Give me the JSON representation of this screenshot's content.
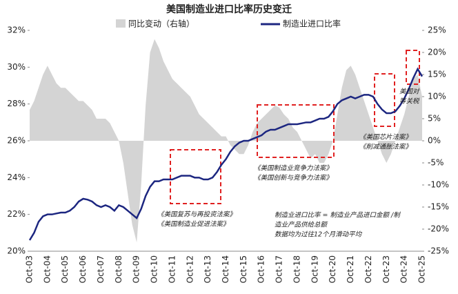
{
  "chart_data": {
    "type": "line",
    "title": "美国制造业进口比率历史变迁",
    "categories": [
      "Oct-03",
      null,
      null,
      null,
      "Oct-04",
      null,
      null,
      null,
      "Oct-05",
      null,
      null,
      null,
      "Oct-06",
      null,
      null,
      null,
      "Oct-07",
      null,
      null,
      null,
      "Oct-08",
      null,
      null,
      null,
      "Oct-09",
      null,
      null,
      null,
      "Oct-10",
      null,
      null,
      null,
      "Oct-11",
      null,
      null,
      null,
      "Oct-12",
      null,
      null,
      null,
      "Oct-13",
      null,
      null,
      null,
      "Oct-14",
      null,
      null,
      null,
      "Oct-15",
      null,
      null,
      null,
      "Oct-16",
      null,
      null,
      null,
      "Oct-17",
      null,
      null,
      null,
      "Oct-18",
      null,
      null,
      null,
      "Oct-19",
      null,
      null,
      null,
      "Oct-20",
      null,
      null,
      null,
      "Oct-21",
      null,
      null,
      null,
      "Oct-22",
      null,
      null,
      null,
      "Oct-23",
      null,
      null,
      null,
      "Oct-24",
      null,
      null,
      null,
      "Oct-25"
    ],
    "series": [
      {
        "name": "同比变动（右轴）",
        "color": "#d4d4d4",
        "axis": "y2",
        "kind": "area",
        "values": [
          7,
          9,
          12,
          15,
          17,
          15,
          13,
          12,
          12,
          11,
          10,
          9,
          9,
          8,
          7,
          5,
          5,
          5,
          4,
          2,
          0,
          -5,
          -12,
          -19,
          -23,
          -10,
          8,
          20,
          23,
          21,
          18,
          16,
          14,
          13,
          12,
          11,
          10,
          8,
          6,
          5,
          4,
          3,
          2,
          1,
          1,
          -1,
          -2,
          -3,
          -3,
          -1,
          2,
          4,
          5,
          6,
          7,
          8,
          7.5,
          6,
          5,
          3,
          2,
          0,
          -2,
          -4,
          -3,
          -5,
          -5,
          -3,
          0,
          6,
          12,
          16,
          17,
          15,
          12,
          9,
          6,
          3,
          0,
          -3,
          -5,
          -3,
          0,
          3,
          6,
          10,
          14,
          15,
          10
        ]
      },
      {
        "name": "制造业进口比率",
        "color": "#1c2680",
        "kind": "line",
        "values": [
          20.6,
          21.0,
          21.6,
          21.9,
          22.0,
          22.0,
          22.05,
          22.1,
          22.1,
          22.2,
          22.4,
          22.7,
          22.85,
          22.8,
          22.7,
          22.5,
          22.4,
          22.5,
          22.4,
          22.2,
          22.5,
          22.4,
          22.2,
          22.0,
          21.8,
          22.3,
          23.0,
          23.5,
          23.8,
          23.8,
          23.9,
          23.9,
          23.9,
          24.0,
          24.1,
          24.1,
          24.1,
          24.0,
          24.0,
          23.9,
          23.9,
          24.0,
          24.3,
          24.7,
          25.0,
          25.4,
          25.7,
          25.9,
          26.0,
          26.0,
          26.1,
          26.2,
          26.3,
          26.5,
          26.6,
          26.6,
          26.7,
          26.8,
          26.9,
          26.9,
          26.9,
          26.95,
          27.0,
          27.0,
          27.1,
          27.2,
          27.2,
          27.3,
          27.6,
          28.0,
          28.2,
          28.3,
          28.4,
          28.3,
          28.4,
          28.5,
          28.5,
          28.4,
          28.0,
          27.7,
          27.5,
          27.5,
          27.6,
          27.9,
          28.3,
          28.8,
          29.4,
          29.9,
          29.5
        ]
      }
    ],
    "ylim": [
      20,
      32
    ],
    "yticks": [
      {
        "value": 20,
        "label": "20%"
      },
      {
        "value": 22,
        "label": "22%"
      },
      {
        "value": 24,
        "label": "24%"
      },
      {
        "value": 26,
        "label": "26%"
      },
      {
        "value": 28,
        "label": "28%"
      },
      {
        "value": 30,
        "label": "30%"
      },
      {
        "value": 32,
        "label": "32%"
      }
    ],
    "y2lim": [
      -25,
      25
    ],
    "y2ticks": [
      {
        "value": -25,
        "label": "-25%"
      },
      {
        "value": -20,
        "label": "-20%"
      },
      {
        "value": -15,
        "label": "-15%"
      },
      {
        "value": -10,
        "label": "-10%"
      },
      {
        "value": -5,
        "label": "-5%"
      },
      {
        "value": 0,
        "label": "0%"
      },
      {
        "value": 5,
        "label": "5%"
      },
      {
        "value": 10,
        "label": "10%"
      },
      {
        "value": 15,
        "label": "15%"
      },
      {
        "value": 20,
        "label": "20%"
      },
      {
        "value": 25,
        "label": "25%"
      }
    ],
    "legend": "top",
    "annotations": [
      [
        "《美国复苏与再投资法案》",
        "《美国制造业促进法案》"
      ],
      [
        "《美国制造业竞争力法案》",
        "《美国创新与竞争力法案》"
      ],
      [
        "《美国芯片法案》",
        "《削减通胀法案》"
      ],
      [
        "美国对",
        "等关税"
      ],
      [
        "制造业进口比率 = 制造业产品进口金额 /制",
        "造业产品供给总额",
        "数据均为过往12个月滑动平均"
      ]
    ]
  }
}
